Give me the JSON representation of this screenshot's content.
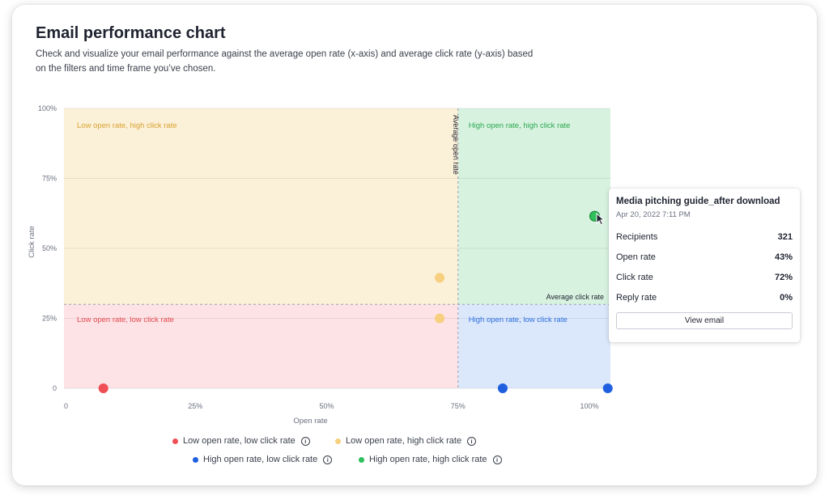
{
  "header": {
    "title": "Email performance chart",
    "subtitle": "Check and visualize your email performance against the average open rate (x-axis) and average click rate (y-axis) based on the filters and time frame you’ve chosen."
  },
  "chart_data": {
    "type": "scatter",
    "xlabel": "Open rate",
    "ylabel": "Click rate",
    "xlim": [
      0,
      104
    ],
    "ylim": [
      0,
      100
    ],
    "x_ticks": [
      "0",
      "25%",
      "50%",
      "75%",
      "100%"
    ],
    "x_tick_values": [
      0,
      25,
      50,
      75,
      100
    ],
    "y_ticks": [
      "0",
      "25%",
      "50%",
      "75%",
      "100%"
    ],
    "y_tick_values": [
      0,
      25,
      50,
      75,
      100
    ],
    "grid": true,
    "average_open_rate": 75,
    "average_click_rate": 30,
    "average_open_rate_label": "Average open rate",
    "average_click_rate_label": "Average click rate",
    "quadrants": [
      {
        "label": "Low open rate, high click rate",
        "color": "#fbf0d8",
        "text_color": "#d9a330"
      },
      {
        "label": "High open rate, high click rate",
        "color": "#d8f2e0",
        "text_color": "#2aa84e"
      },
      {
        "label": "Low open rate, low click rate",
        "color": "#fde3e6",
        "text_color": "#e5484d"
      },
      {
        "label": "High open rate, low click rate",
        "color": "#dbe7fb",
        "text_color": "#2b6fe0"
      }
    ],
    "series": [
      {
        "name": "Low open rate, low click rate",
        "color": "#ef4f55",
        "points": [
          [
            7.5,
            0
          ]
        ]
      },
      {
        "name": "Low open rate, high click rate",
        "color": "#f7cf7e",
        "points": [
          [
            71.5,
            39.5
          ],
          [
            71.5,
            25
          ]
        ]
      },
      {
        "name": "High open rate, low click rate",
        "color": "#1f5fe0",
        "points": [
          [
            83.5,
            0
          ],
          [
            103.5,
            0
          ]
        ]
      },
      {
        "name": "High open rate, high click rate",
        "color": "#2ec05a",
        "points": [
          [
            101,
            61.5
          ]
        ]
      }
    ]
  },
  "tooltip": {
    "title": "Media pitching guide_after download",
    "date": "Apr 20, 2022 7:11 PM",
    "rows": [
      {
        "label": "Recipients",
        "value": "321"
      },
      {
        "label": "Open rate",
        "value": "43%"
      },
      {
        "label": "Click rate",
        "value": "72%"
      },
      {
        "label": "Reply rate",
        "value": "0%"
      }
    ],
    "button": "View email"
  },
  "legend": {
    "items": [
      {
        "label": "Low open rate, low click rate",
        "color": "#ef4f55"
      },
      {
        "label": "Low open rate, high click rate",
        "color": "#f7cf7e"
      },
      {
        "label": "High open rate, low click rate",
        "color": "#1f5fe0"
      },
      {
        "label": "High open rate, high click rate",
        "color": "#2ec05a"
      }
    ],
    "info_glyph": "i"
  }
}
